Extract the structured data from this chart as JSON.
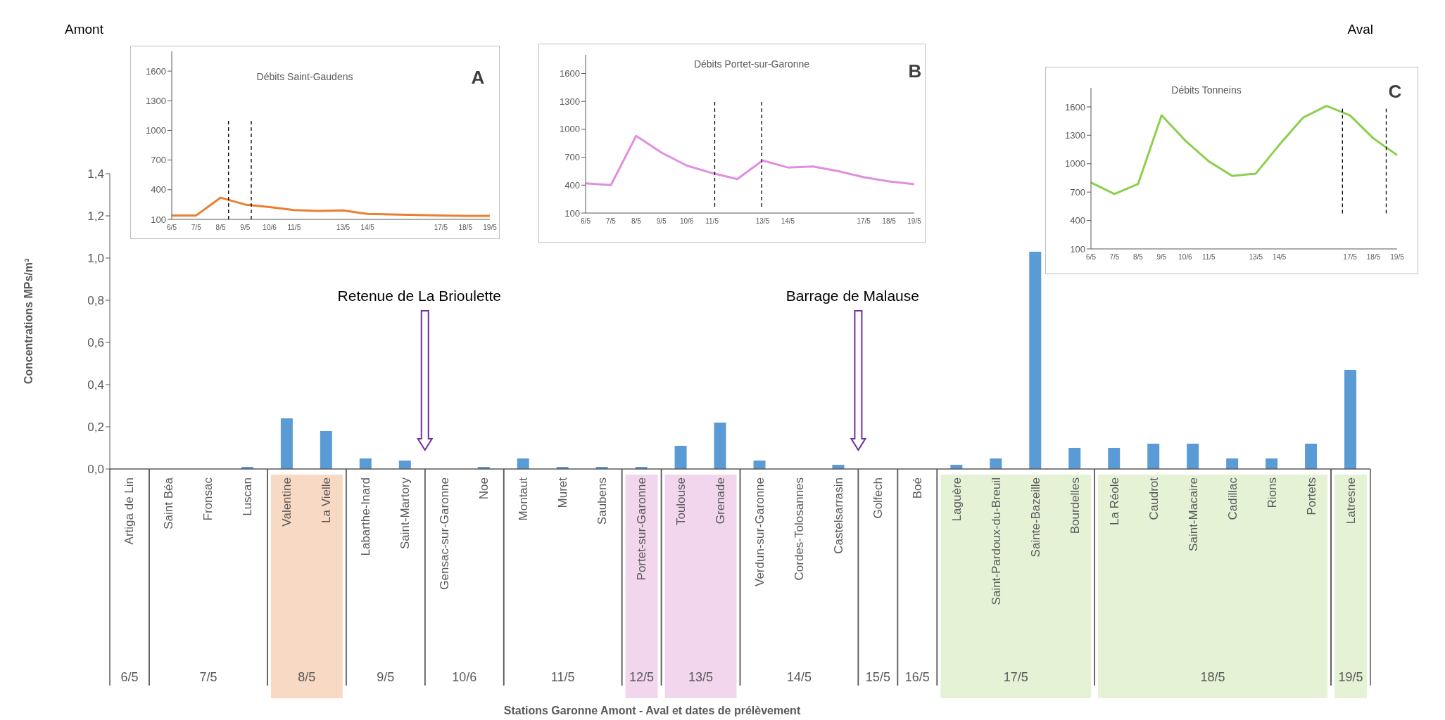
{
  "chart_data": [
    {
      "type": "bar",
      "xlabel": "Stations Garonne Amont - Aval et dates de prélèvement",
      "ylabel": "Concentrations MPs/m³",
      "categories": [
        "Artiga de Lin",
        "Saint Béa",
        "Fronsac",
        "Luscan",
        "Valentine",
        "La Vielle",
        "Labarthe-Inard",
        "Saint-Martory",
        "Gensac-sur-Garonne",
        "Noe",
        "Montaut",
        "Muret",
        "Saubens",
        "Portet-sur-Garonne",
        "Toulouse",
        "Grenade",
        "Verdun-sur-Garonne",
        "Cordes-Tolosannes",
        "Castelsarrasin",
        "Golfech",
        "Boé",
        "Laguère",
        "Saint-Pardoux-du-Breuil",
        "Sainte-Bazeille",
        "Bourdelles",
        "La Réole",
        "Caudrot",
        "Saint-Macaire",
        "Cadillac",
        "Rions",
        "Portets",
        "Latresne"
      ],
      "values": [
        0,
        0,
        0,
        0.01,
        0.24,
        0.18,
        0.05,
        0.04,
        0,
        0.01,
        0.05,
        0.01,
        0.01,
        0.01,
        0.11,
        0.22,
        0.04,
        0,
        0.02,
        0,
        0,
        0.02,
        0.05,
        1.03,
        0.1,
        0.1,
        0.12,
        0.12,
        0.05,
        0.05,
        0.12,
        0.47
      ],
      "color": "#5b9bd5",
      "ylim": [
        0,
        1.4
      ],
      "yticks": [
        {
          "value": 0,
          "label": "0,0"
        },
        {
          "value": 0.2,
          "label": "0,2"
        },
        {
          "value": 0.4,
          "label": "0,4"
        },
        {
          "value": 0.6,
          "label": "0,6"
        },
        {
          "value": 0.8,
          "label": "0,8"
        },
        {
          "value": 1,
          "label": "1,0"
        },
        {
          "value": 1.2,
          "label": "1,2"
        },
        {
          "value": 1.4,
          "label": "1,4"
        }
      ],
      "annotations": [
        "Amont",
        "Aval",
        "Retenue de La Brioulette",
        "Barrage de Malause",
        "6/5",
        "7/5",
        "8/5",
        "9/5",
        "10/6",
        "11/5",
        "12/5",
        "13/5",
        "14/5",
        "15/5",
        "16/5",
        "17/5",
        "18/5",
        "19/5"
      ]
    },
    {
      "type": "line",
      "title": "Débits Saint-Gaudens",
      "annotations": [
        "A"
      ],
      "color": "#ed7d31",
      "categories": [
        "6/5",
        "7/5",
        "8/5",
        "9/5",
        "10/6",
        "11/5",
        null,
        "13/5",
        "14/5",
        null,
        null,
        "17/5",
        "18/5",
        "19/5"
      ],
      "values": [
        140,
        140,
        320,
        250,
        225,
        195,
        185,
        190,
        155,
        150,
        145,
        140,
        135,
        135
      ],
      "ylim": [
        100,
        1800
      ],
      "yticks": [
        100,
        400,
        700,
        1000,
        1300,
        1600
      ],
      "ref_lines": [
        {
          "axis": "x",
          "value": "8/5",
          "color": "#000000",
          "line_style": "dashed"
        },
        {
          "axis": "x",
          "value": "9/5",
          "color": "#000000",
          "line_style": "dashed"
        }
      ]
    },
    {
      "type": "line",
      "title": "Débits Portet-sur-Garonne",
      "annotations": [
        "B"
      ],
      "color": "#df8fdf",
      "categories": [
        "6/5",
        "7/5",
        "8/5",
        "9/5",
        "10/6",
        "11/5",
        null,
        "13/5",
        "14/5",
        null,
        null,
        "17/5",
        "18/5",
        "19/5"
      ],
      "values": [
        420,
        400,
        930,
        750,
        610,
        530,
        465,
        665,
        590,
        600,
        550,
        485,
        440,
        410
      ],
      "ylim": [
        100,
        1800
      ],
      "yticks": [
        100,
        400,
        700,
        1000,
        1300,
        1600
      ],
      "ref_lines": [
        {
          "axis": "x",
          "value": "11/5",
          "color": "#000000",
          "line_style": "dashed"
        },
        {
          "axis": "x",
          "value": "13/5",
          "color": "#000000",
          "line_style": "dashed"
        }
      ]
    },
    {
      "type": "line",
      "title": "Débits Tonneins",
      "annotations": [
        "C"
      ],
      "color": "#8ccf4d",
      "categories": [
        "6/5",
        "7/5",
        "8/5",
        "9/5",
        "10/6",
        "11/5",
        null,
        "13/5",
        "14/5",
        null,
        null,
        "17/5",
        "18/5",
        "19/5"
      ],
      "values": [
        800,
        680,
        785,
        1510,
        1245,
        1025,
        870,
        895,
        1200,
        1485,
        1610,
        1510,
        1265,
        1090
      ],
      "ylim": [
        100,
        1800
      ],
      "yticks": [
        100,
        400,
        700,
        1000,
        1300,
        1600
      ],
      "ref_lines": [
        {
          "axis": "x",
          "value": "17/5",
          "color": "#000000",
          "line_style": "dashed"
        },
        {
          "axis": "x",
          "value": "19/5",
          "color": "#000000",
          "line_style": "dashed"
        }
      ]
    }
  ]
}
